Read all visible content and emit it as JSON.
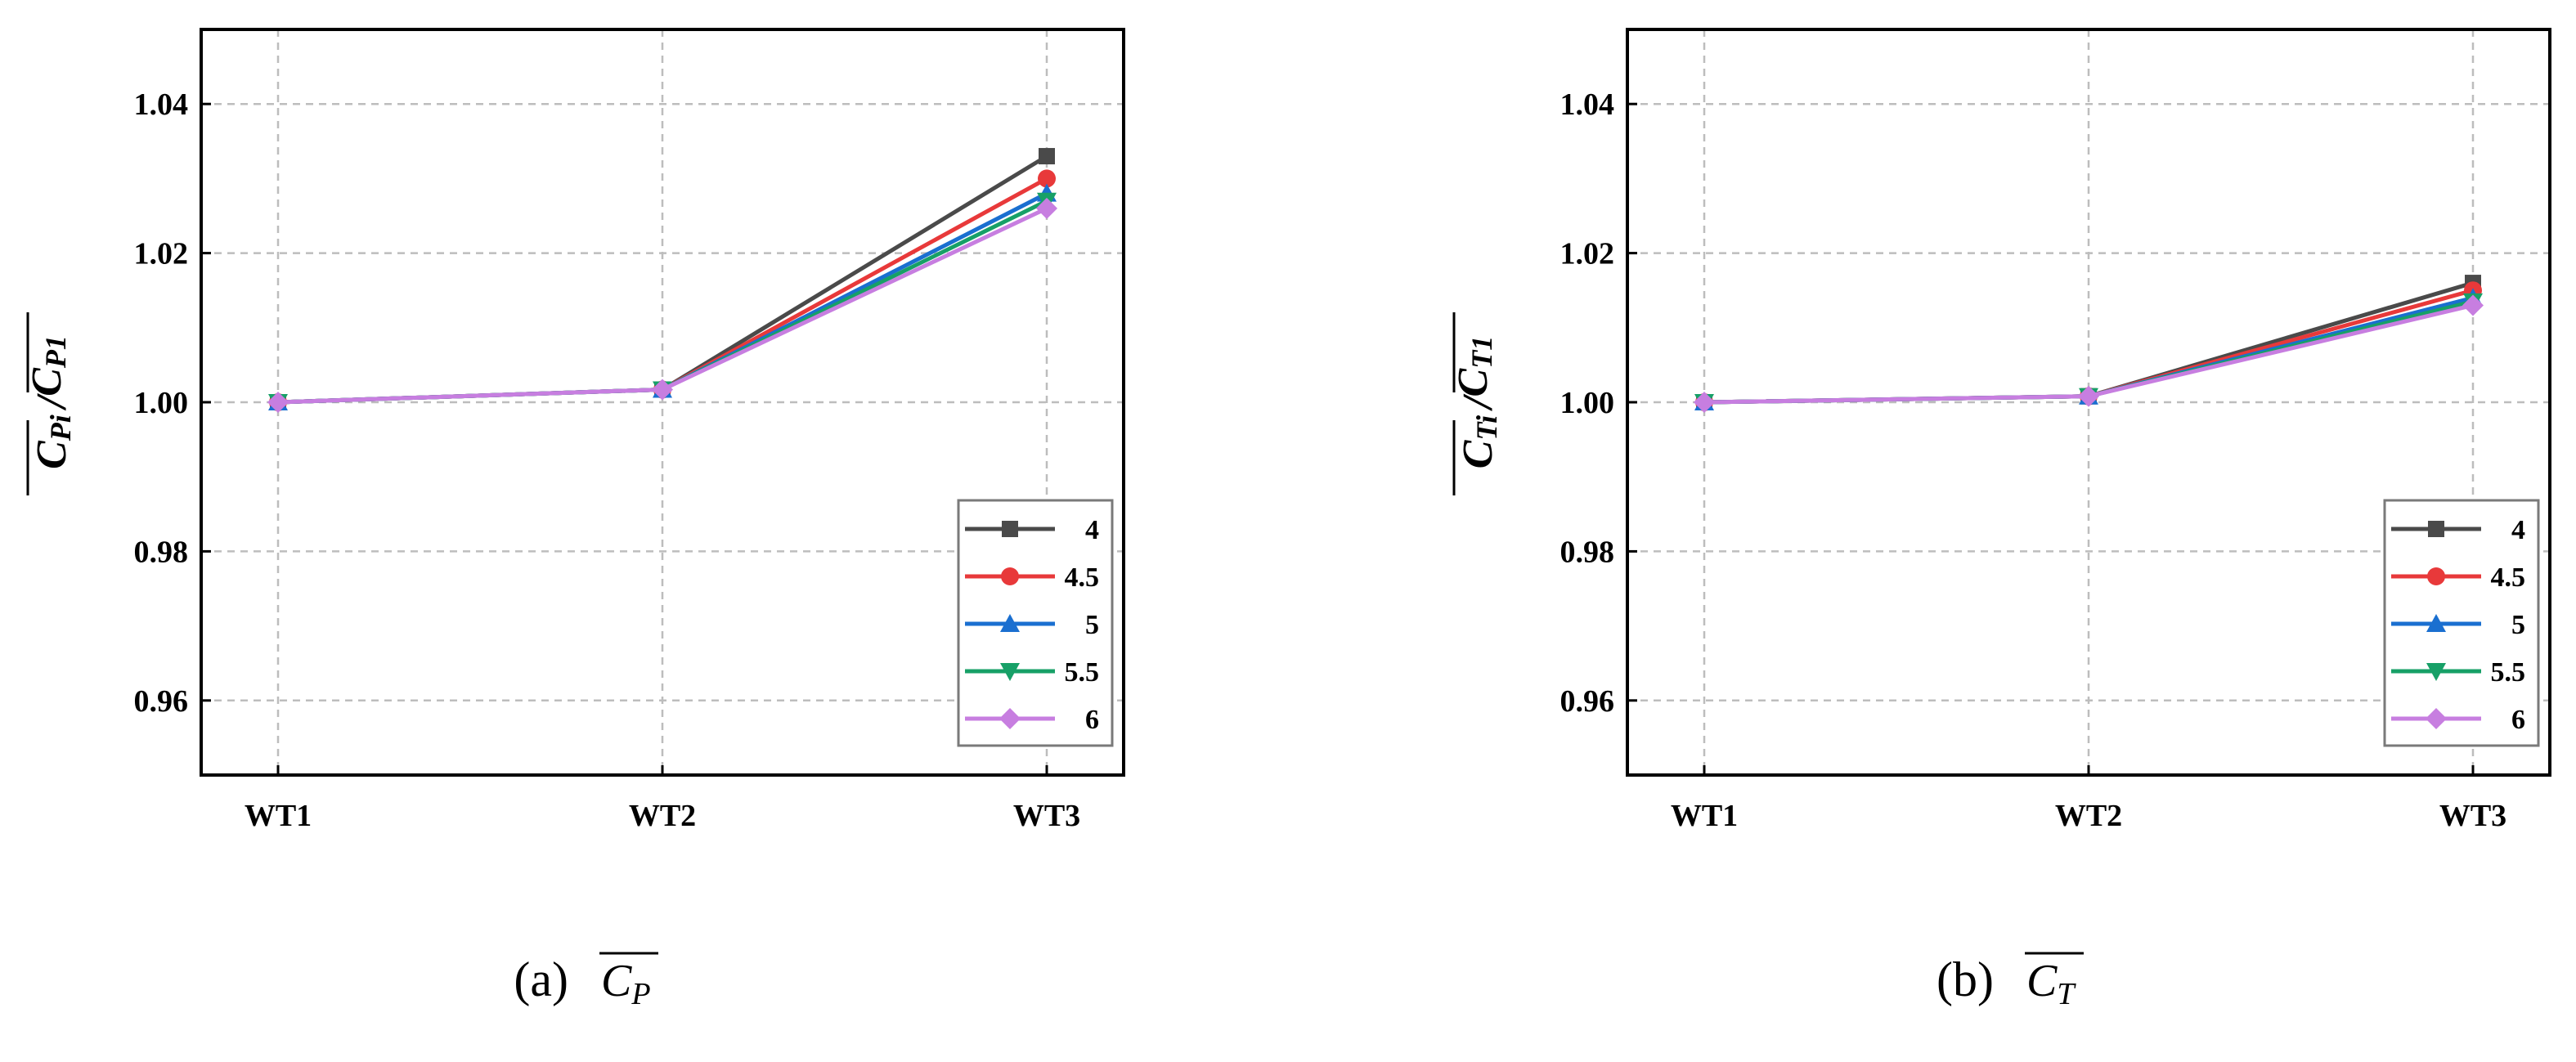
{
  "chart_data": [
    {
      "type": "line",
      "id": "a",
      "caption": {
        "label": "(a)",
        "symbol": "C",
        "subscript": "P"
      },
      "ylabel": {
        "num": "C",
        "num_sub": "Pi",
        "sep": "/",
        "den": "C",
        "den_sub": "P1"
      },
      "categories": [
        "WT1",
        "WT2",
        "WT3"
      ],
      "ylim": [
        0.95,
        1.05
      ],
      "yticks": [
        0.96,
        0.98,
        1.0,
        1.02,
        1.04
      ],
      "ytick_labels": [
        "0.96",
        "0.98",
        "1.00",
        "1.02",
        "1.04"
      ],
      "grid": true,
      "legend_position": "lower-right",
      "series": [
        {
          "name": "4",
          "color": "#4a4a4a",
          "marker": "square",
          "values": [
            1.0,
            1.0017,
            1.033
          ]
        },
        {
          "name": "4.5",
          "color": "#e8393a",
          "marker": "circle",
          "values": [
            1.0,
            1.0017,
            1.03
          ]
        },
        {
          "name": "5",
          "color": "#1a6fd0",
          "marker": "triangle-up",
          "values": [
            1.0,
            1.0017,
            1.028
          ]
        },
        {
          "name": "5.5",
          "color": "#17a067",
          "marker": "triangle-down",
          "values": [
            1.0,
            1.0017,
            1.027
          ]
        },
        {
          "name": "6",
          "color": "#c77ee0",
          "marker": "diamond",
          "values": [
            1.0,
            1.0017,
            1.026
          ]
        }
      ]
    },
    {
      "type": "line",
      "id": "b",
      "caption": {
        "label": "(b)",
        "symbol": "C",
        "subscript": "T"
      },
      "ylabel": {
        "num": "C",
        "num_sub": "Ti",
        "sep": "/",
        "den": "C",
        "den_sub": "T1"
      },
      "categories": [
        "WT1",
        "WT2",
        "WT3"
      ],
      "ylim": [
        0.95,
        1.05
      ],
      "yticks": [
        0.96,
        0.98,
        1.0,
        1.02,
        1.04
      ],
      "ytick_labels": [
        "0.96",
        "0.98",
        "1.00",
        "1.02",
        "1.04"
      ],
      "grid": true,
      "legend_position": "lower-right",
      "series": [
        {
          "name": "4",
          "color": "#4a4a4a",
          "marker": "square",
          "values": [
            1.0,
            1.0008,
            1.016
          ]
        },
        {
          "name": "4.5",
          "color": "#e8393a",
          "marker": "circle",
          "values": [
            1.0,
            1.0008,
            1.015
          ]
        },
        {
          "name": "5",
          "color": "#1a6fd0",
          "marker": "triangle-up",
          "values": [
            1.0,
            1.0008,
            1.014
          ]
        },
        {
          "name": "5.5",
          "color": "#17a067",
          "marker": "triangle-down",
          "values": [
            1.0,
            1.0008,
            1.0135
          ]
        },
        {
          "name": "6",
          "color": "#c77ee0",
          "marker": "diamond",
          "values": [
            1.0,
            1.0008,
            1.013
          ]
        }
      ]
    }
  ]
}
